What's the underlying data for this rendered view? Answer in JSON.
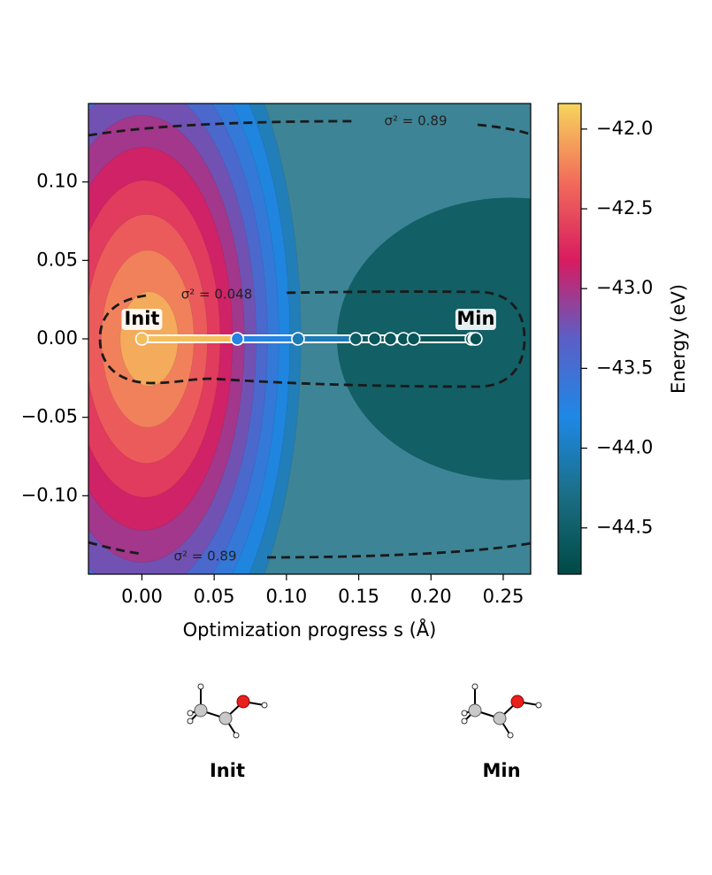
{
  "chart_data": {
    "type": "contour",
    "xlabel": "Optimization progress s (Å)",
    "colorbar_label": "Energy (eV)",
    "xlim": [
      -0.037,
      0.269
    ],
    "ylim": [
      -0.15,
      0.15
    ],
    "clim": [
      -44.79,
      -41.84
    ],
    "xticks": [
      {
        "value": 0,
        "label": "0.00"
      },
      {
        "value": 0.05,
        "label": "0.05"
      },
      {
        "value": 0.1,
        "label": "0.10"
      },
      {
        "value": 0.15,
        "label": "0.15"
      },
      {
        "value": 0.2,
        "label": "0.20"
      },
      {
        "value": 0.25,
        "label": "0.25"
      }
    ],
    "yticks": [
      {
        "value": -0.1,
        "label": "−0.10"
      },
      {
        "value": -0.05,
        "label": "−0.05"
      },
      {
        "value": 0,
        "label": "0.00"
      },
      {
        "value": 0.05,
        "label": "0.05"
      },
      {
        "value": 0.1,
        "label": "0.10"
      }
    ],
    "cticks": [
      {
        "value": -44.5,
        "label": "−44.5"
      },
      {
        "value": -44.0,
        "label": "−44.0"
      },
      {
        "value": -43.5,
        "label": "−43.5"
      },
      {
        "value": -43.0,
        "label": "−43.0"
      },
      {
        "value": -42.5,
        "label": "−42.5"
      },
      {
        "value": -42.0,
        "label": "−42.0"
      }
    ],
    "colormap": [
      "#004a45",
      "#1b6e84",
      "#1e88e5",
      "#5b5fc7",
      "#d81b60",
      "#f26c5a",
      "#f6d55c"
    ],
    "levels": [
      -44.6,
      -44.3,
      -44.0,
      -43.8,
      -43.6,
      -43.4,
      -43.2,
      -43.0,
      -42.8,
      -42.6,
      -42.4,
      -42.2,
      -42.0
    ],
    "path": {
      "x": [
        0,
        0.066,
        0.108,
        0.148,
        0.161,
        0.172,
        0.181,
        0.188,
        0.228,
        0.23,
        0.231
      ],
      "y": [
        0,
        0,
        0,
        0,
        0,
        0,
        0,
        0,
        0,
        0,
        0
      ],
      "energy": [
        -41.95,
        -43.75,
        -44.05,
        -44.55,
        -44.6,
        -44.62,
        -44.63,
        -44.63,
        -44.65,
        -44.66,
        -44.66
      ]
    },
    "point_labels": [
      "Init",
      "Min"
    ],
    "contour_labels": [
      "σ² = 0.89",
      "σ² = 0.048",
      "σ² = 0.89"
    ]
  },
  "structures": {
    "labels": [
      "Init",
      "Min"
    ]
  }
}
